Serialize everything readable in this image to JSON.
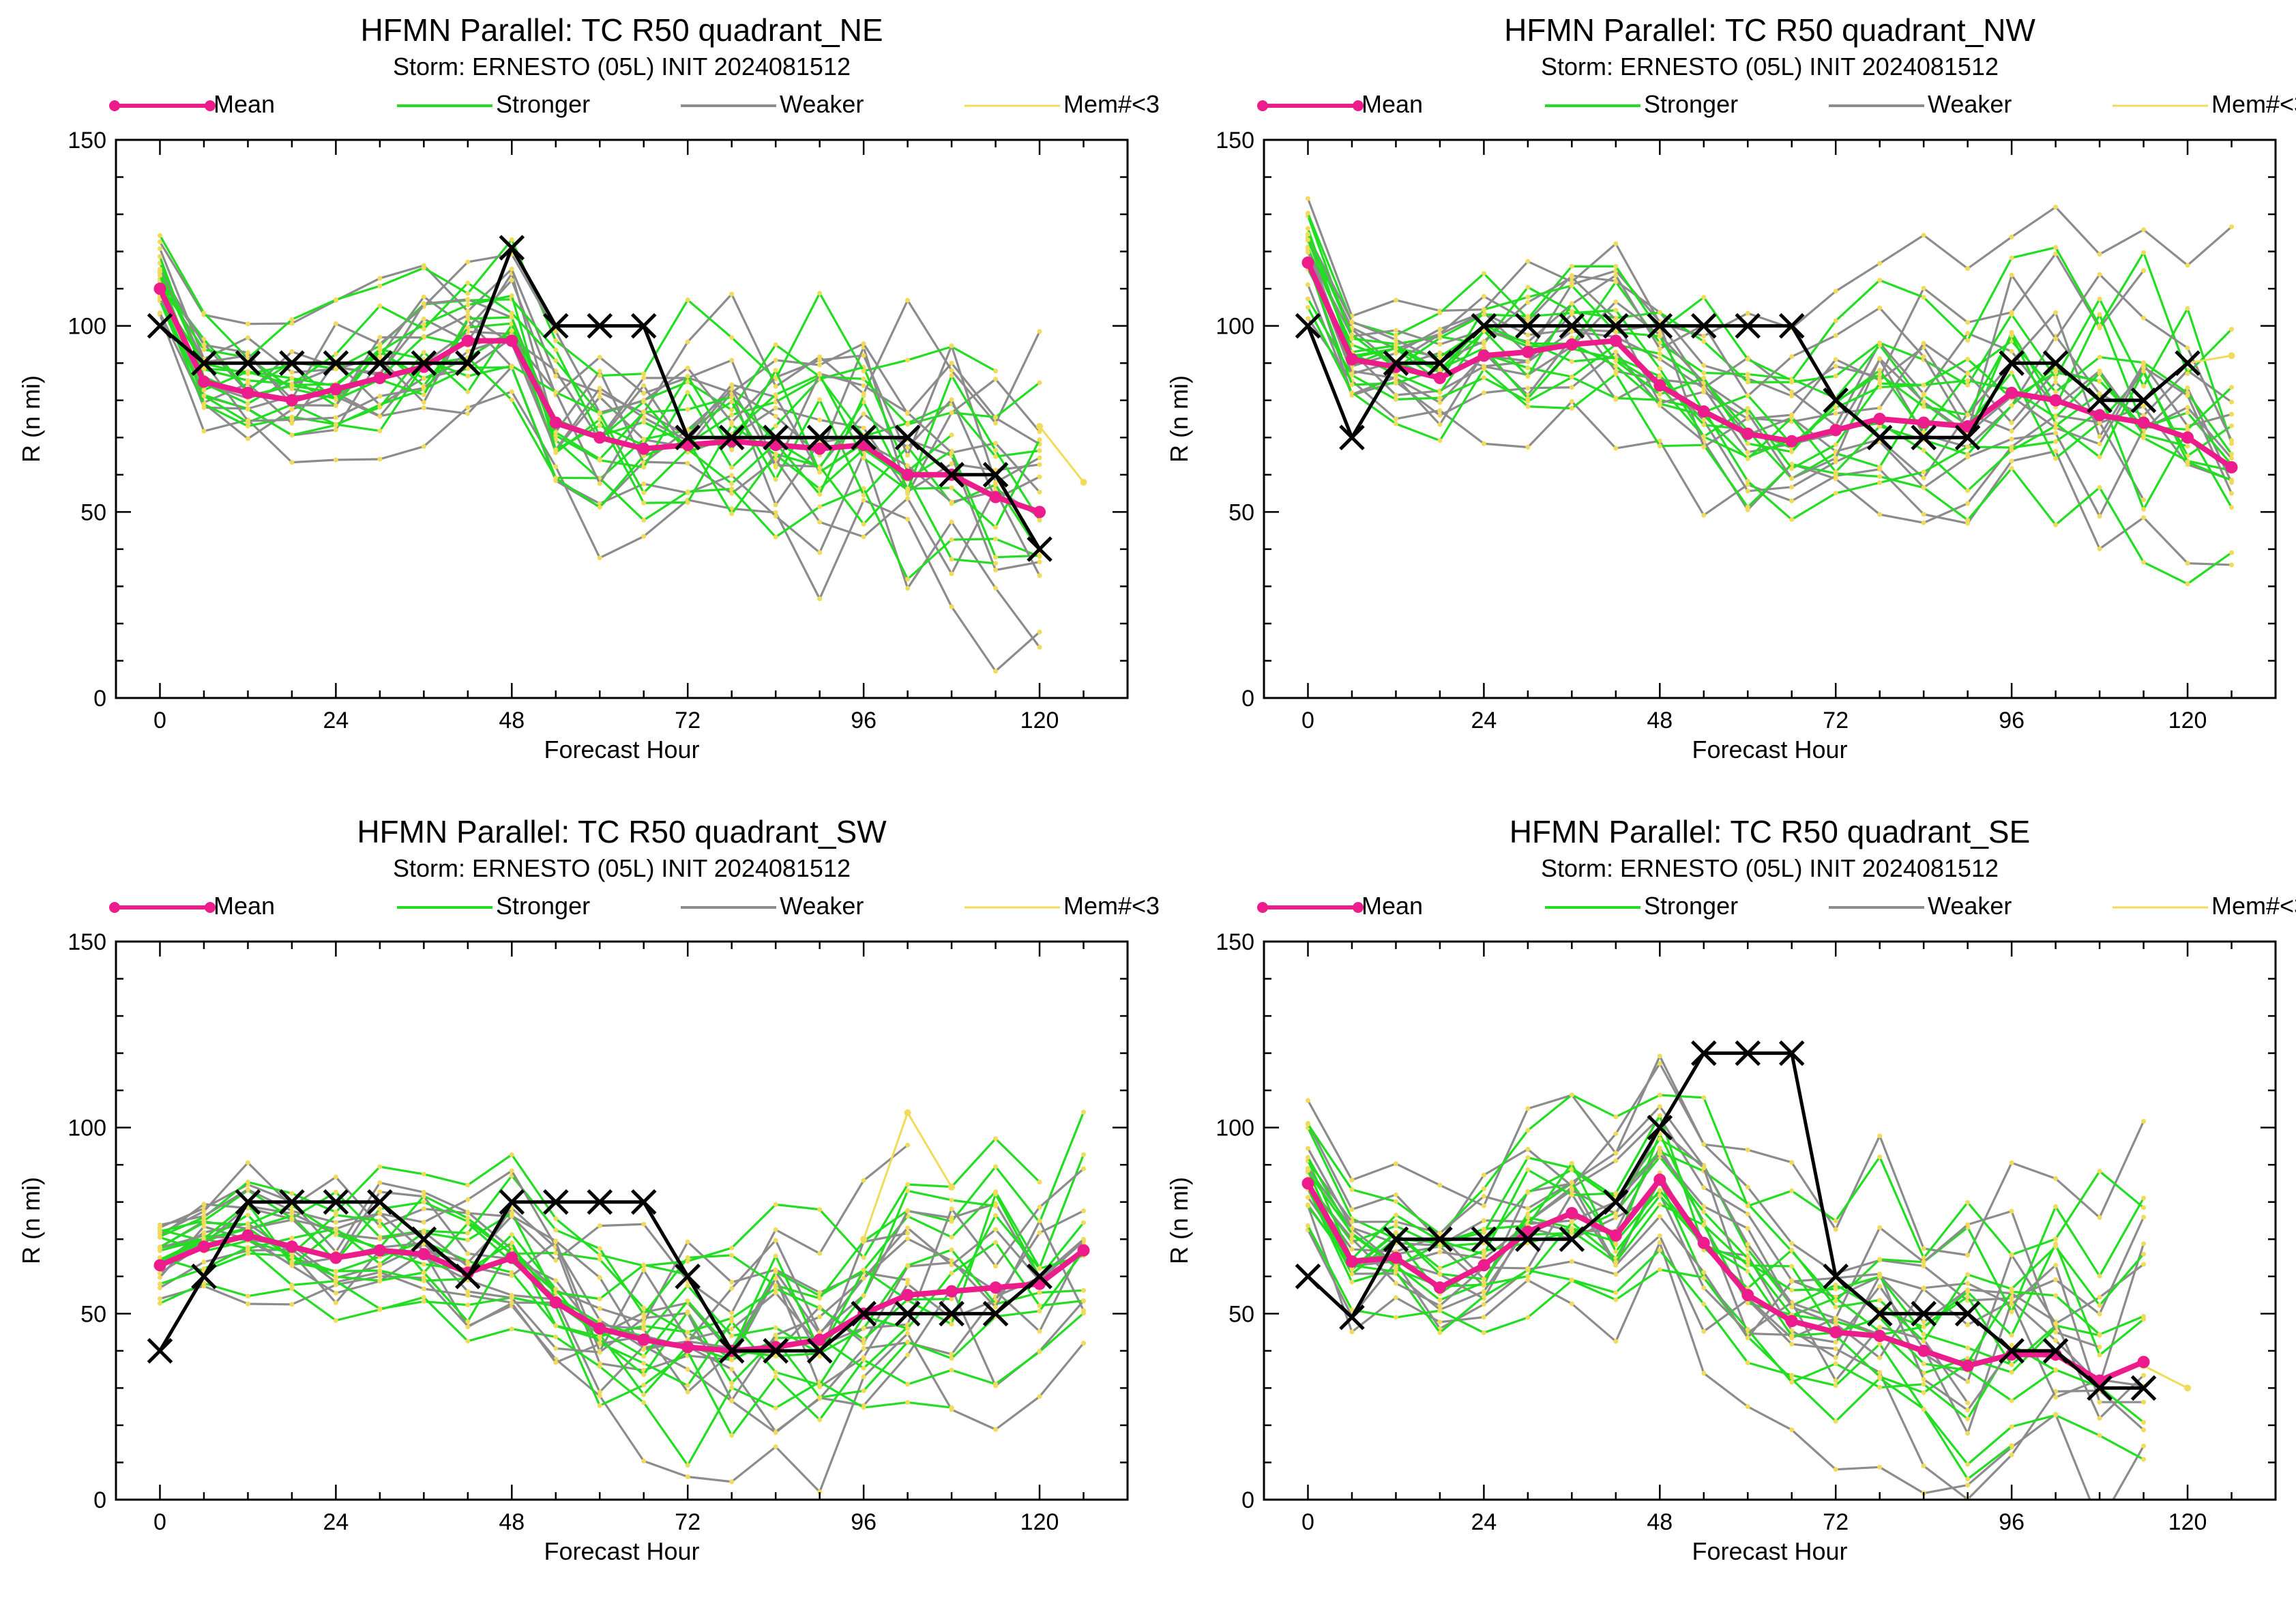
{
  "colors": {
    "mean": "#ec1c8c",
    "stronger": "#22dd22",
    "weaker": "#8c8c8c",
    "few_members": "#f0dc5a",
    "best_track": "#000000"
  },
  "legend": [
    {
      "key": "mean",
      "label": "Mean"
    },
    {
      "key": "stronger",
      "label": "Stronger"
    },
    {
      "key": "weaker",
      "label": "Weaker"
    },
    {
      "key": "few_members",
      "label": "Mem#<3"
    }
  ],
  "chart_data": [
    {
      "type": "line",
      "title": "HFMN Parallel: TC  R50 quadrant_NE",
      "subtitle": "Storm: ERNESTO (05L) INIT 2024081512",
      "xlabel": "Forecast Hour",
      "ylabel": "R (n mi)",
      "xlim": [
        -6,
        132
      ],
      "ylim": [
        0,
        150
      ],
      "xticks": [
        0,
        24,
        48,
        72,
        96,
        120
      ],
      "yticks": [
        0,
        50,
        100,
        150
      ],
      "mean": {
        "x": [
          0,
          6,
          12,
          18,
          24,
          30,
          36,
          42,
          48,
          54,
          60,
          66,
          72,
          78,
          84,
          90,
          96,
          102,
          108,
          114,
          120
        ],
        "y": [
          110,
          85,
          82,
          80,
          83,
          86,
          89,
          96,
          96,
          74,
          70,
          67,
          68,
          69,
          68,
          67,
          68,
          60,
          60,
          54,
          50
        ]
      },
      "best_track": {
        "x": [
          0,
          6,
          12,
          18,
          24,
          30,
          36,
          42,
          48,
          54,
          60,
          66,
          72,
          78,
          84,
          90,
          96,
          102,
          108,
          114,
          120
        ],
        "y": [
          100,
          90,
          90,
          90,
          90,
          90,
          90,
          90,
          121,
          100,
          100,
          100,
          70,
          70,
          70,
          70,
          70,
          70,
          60,
          60,
          40
        ]
      },
      "few_members_tail": {
        "x": [
          120,
          126
        ],
        "y": [
          73,
          58
        ]
      },
      "stronger_spread": [
        -14,
        -9,
        -5,
        0,
        5,
        10,
        16,
        24
      ],
      "weaker_spread": [
        -20,
        -12,
        -6,
        -2,
        3,
        8,
        14,
        22
      ]
    },
    {
      "type": "line",
      "title": "HFMN Parallel: TC  R50 quadrant_NW",
      "subtitle": "Storm: ERNESTO (05L) INIT 2024081512",
      "xlabel": "Forecast Hour",
      "ylabel": "R (n mi)",
      "xlim": [
        -6,
        132
      ],
      "ylim": [
        0,
        150
      ],
      "xticks": [
        0,
        24,
        48,
        72,
        96,
        120
      ],
      "yticks": [
        0,
        50,
        100,
        150
      ],
      "mean": {
        "x": [
          0,
          6,
          12,
          18,
          24,
          30,
          36,
          42,
          48,
          54,
          60,
          66,
          72,
          78,
          84,
          90,
          96,
          102,
          108,
          114,
          120,
          126
        ],
        "y": [
          117,
          91,
          89,
          86,
          92,
          93,
          95,
          96,
          84,
          77,
          71,
          69,
          72,
          75,
          74,
          73,
          82,
          80,
          76,
          74,
          70,
          62
        ]
      },
      "best_track": {
        "x": [
          0,
          6,
          12,
          18,
          24,
          30,
          36,
          42,
          48,
          54,
          60,
          66,
          72,
          78,
          84,
          90,
          96,
          102,
          108,
          114,
          120
        ],
        "y": [
          100,
          70,
          90,
          90,
          100,
          100,
          100,
          100,
          100,
          100,
          100,
          100,
          80,
          70,
          70,
          70,
          90,
          90,
          80,
          80,
          90
        ]
      },
      "few_members_tail": {
        "x": [
          120,
          126
        ],
        "y": [
          90,
          92
        ]
      },
      "stronger_spread": [
        -16,
        -10,
        -6,
        -1,
        4,
        9,
        15,
        22
      ],
      "weaker_spread": [
        -22,
        -14,
        -7,
        -2,
        3,
        9,
        17,
        30
      ]
    },
    {
      "type": "line",
      "title": "HFMN Parallel: TC  R50 quadrant_SW",
      "subtitle": "Storm: ERNESTO (05L) INIT 2024081512",
      "xlabel": "Forecast Hour",
      "ylabel": "R (n mi)",
      "xlim": [
        -6,
        132
      ],
      "ylim": [
        0,
        150
      ],
      "xticks": [
        0,
        24,
        48,
        72,
        96,
        120
      ],
      "yticks": [
        0,
        50,
        100,
        150
      ],
      "mean": {
        "x": [
          0,
          6,
          12,
          18,
          24,
          30,
          36,
          42,
          48,
          54,
          60,
          66,
          72,
          78,
          84,
          90,
          96,
          102,
          108,
          114,
          120,
          126
        ],
        "y": [
          63,
          68,
          71,
          68,
          65,
          67,
          66,
          61,
          65,
          53,
          46,
          43,
          41,
          40,
          41,
          43,
          50,
          55,
          56,
          57,
          58,
          67
        ]
      },
      "best_track": {
        "x": [
          0,
          6,
          12,
          18,
          24,
          30,
          36,
          42,
          48,
          54,
          60,
          66,
          72,
          78,
          84,
          90,
          96,
          102,
          108,
          114,
          120
        ],
        "y": [
          40,
          60,
          80,
          80,
          80,
          80,
          70,
          60,
          80,
          80,
          80,
          80,
          60,
          40,
          40,
          40,
          50,
          50,
          50,
          50,
          60
        ]
      },
      "few_members_tail": {
        "x": [
          96,
          102,
          108
        ],
        "y": [
          70,
          104,
          84
        ]
      },
      "stronger_spread": [
        -18,
        -11,
        -6,
        -1,
        4,
        9,
        15,
        22
      ],
      "weaker_spread": [
        -20,
        -12,
        -6,
        -2,
        3,
        8,
        14,
        20
      ]
    },
    {
      "type": "line",
      "title": "HFMN Parallel: TC  R50 quadrant_SE",
      "subtitle": "Storm: ERNESTO (05L) INIT 2024081512",
      "xlabel": "Forecast Hour",
      "ylabel": "R (n mi)",
      "xlim": [
        -6,
        132
      ],
      "ylim": [
        0,
        150
      ],
      "xticks": [
        0,
        24,
        48,
        72,
        96,
        120
      ],
      "yticks": [
        0,
        50,
        100,
        150
      ],
      "mean": {
        "x": [
          0,
          6,
          12,
          18,
          24,
          30,
          36,
          42,
          48,
          54,
          60,
          66,
          72,
          78,
          84,
          90,
          96,
          102,
          108,
          114
        ],
        "y": [
          85,
          64,
          65,
          57,
          63,
          72,
          77,
          71,
          86,
          69,
          55,
          48,
          45,
          44,
          40,
          36,
          39,
          39,
          32,
          37
        ]
      },
      "best_track": {
        "x": [
          0,
          6,
          12,
          18,
          24,
          30,
          36,
          42,
          48,
          54,
          60,
          66,
          72,
          78,
          84,
          90,
          96,
          102,
          108,
          114
        ],
        "y": [
          60,
          49,
          70,
          70,
          70,
          70,
          70,
          80,
          100,
          120,
          120,
          120,
          60,
          50,
          50,
          50,
          40,
          40,
          30,
          30
        ]
      },
      "few_members_tail": {
        "x": [
          114,
          120
        ],
        "y": [
          36,
          30
        ]
      },
      "stronger_spread": [
        -20,
        -12,
        -6,
        -1,
        4,
        10,
        18,
        30
      ],
      "weaker_spread": [
        -24,
        -14,
        -7,
        -2,
        4,
        11,
        22,
        34
      ]
    }
  ]
}
